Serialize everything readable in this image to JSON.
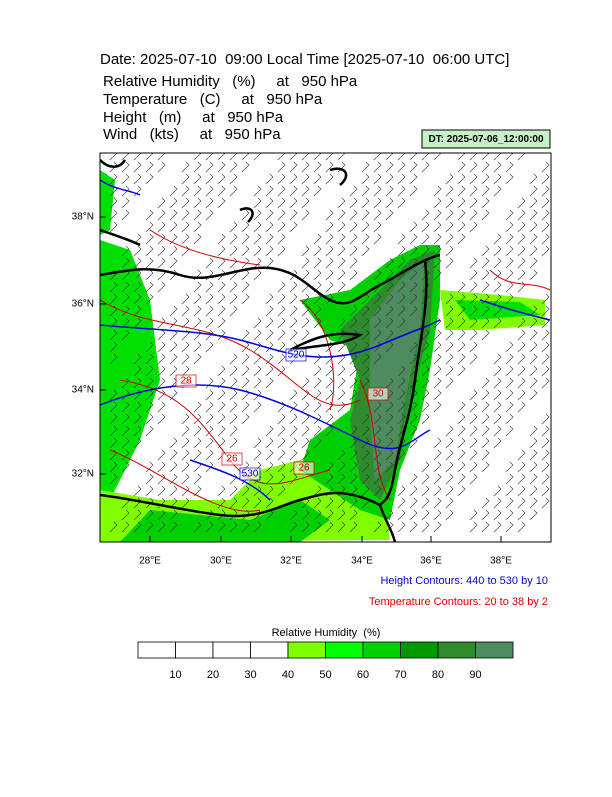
{
  "header": {
    "title": "Date: 2025-07-10  09:00 Local Time [2025-07-10  06:00 UTC]",
    "fields": [
      "Relative Humidity   (%)     at   950 hPa",
      "Temperature   (C)     at   950 hPa",
      "Height   (m)     at   950 hPa",
      "Wind   (kts)     at   950 hPa"
    ],
    "dt": "DT: 2025-07-06_12:00:00"
  },
  "map": {
    "lat_labels": [
      "38°N",
      "36°N",
      "34°N",
      "32°N"
    ],
    "lon_labels": [
      "28°E",
      "30°E",
      "32°E",
      "34°E",
      "36°E",
      "38°E"
    ],
    "contour_labels": [
      "520",
      "530",
      "28",
      "26",
      "26",
      "30"
    ]
  },
  "notes": {
    "height": "Height Contours: 440 to 530 by 10",
    "temperature": "Temperature Contours: 20 to 38 by 2"
  },
  "colorbar": {
    "title": "Relative Humidity  (%)",
    "labels": [
      "10",
      "20",
      "30",
      "40",
      "50",
      "60",
      "70",
      "80",
      "90"
    ]
  }
}
